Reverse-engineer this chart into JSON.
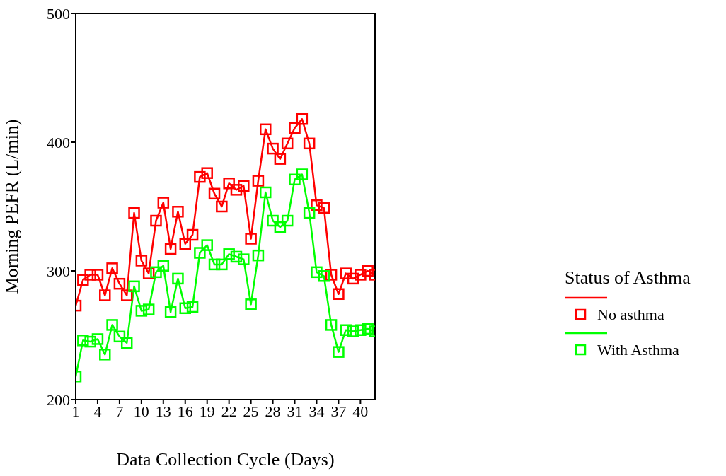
{
  "chart_data": {
    "type": "line",
    "xlabel": "Data Collection Cycle (Days)",
    "ylabel": "Morning PEFR (L/min)",
    "legend_title": "Status of Asthma",
    "x": [
      1,
      2,
      3,
      4,
      5,
      6,
      7,
      8,
      9,
      10,
      11,
      12,
      13,
      14,
      15,
      16,
      17,
      18,
      19,
      20,
      21,
      22,
      23,
      24,
      25,
      26,
      27,
      28,
      29,
      30,
      31,
      32,
      33,
      34,
      35,
      36,
      37,
      38,
      39,
      40,
      41,
      42
    ],
    "series": [
      {
        "name": "No asthma",
        "color": "#ff0000",
        "values": [
          273,
          293,
          297,
          297,
          281,
          302,
          290,
          281,
          345,
          308,
          298,
          339,
          353,
          317,
          346,
          321,
          328,
          373,
          376,
          360,
          350,
          368,
          363,
          366,
          325,
          370,
          410,
          395,
          387,
          399,
          411,
          418,
          399,
          351,
          349,
          297,
          282,
          298,
          294,
          297,
          300,
          297
        ]
      },
      {
        "name": "With Asthma",
        "color": "#00ff00",
        "values": [
          218,
          246,
          245,
          247,
          235,
          258,
          249,
          244,
          288,
          269,
          270,
          299,
          304,
          268,
          294,
          271,
          272,
          314,
          320,
          305,
          305,
          313,
          311,
          309,
          274,
          312,
          361,
          339,
          334,
          339,
          371,
          375,
          345,
          299,
          296,
          258,
          237,
          254,
          253,
          254,
          255,
          253
        ]
      }
    ],
    "xlim": [
      1,
      42
    ],
    "xticks": [
      1,
      4,
      7,
      10,
      13,
      16,
      19,
      22,
      25,
      28,
      31,
      34,
      37,
      40
    ],
    "ylim": [
      200,
      500
    ],
    "yticks": [
      200,
      300,
      400,
      500
    ],
    "grid": false,
    "legend": "right",
    "marker": "square",
    "line_style": "solid"
  }
}
